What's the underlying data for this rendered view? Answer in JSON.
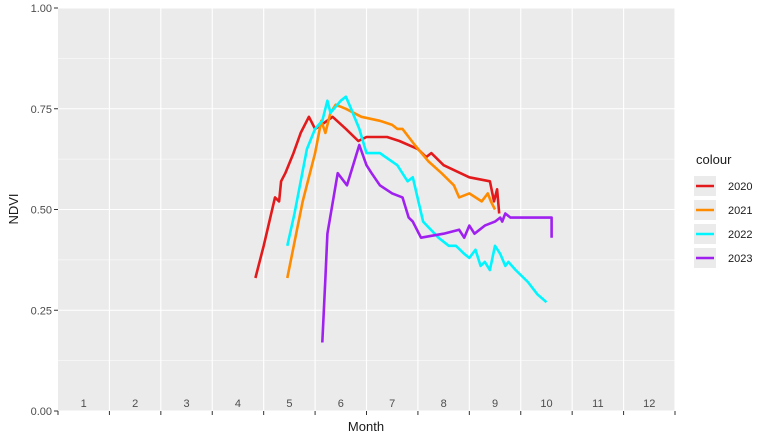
{
  "chart_data": {
    "type": "line",
    "xlabel": "Month",
    "ylabel": "NDVI",
    "xlim": [
      0.5,
      12.5
    ],
    "ylim": [
      0,
      1
    ],
    "x_ticks": [
      "1",
      "2",
      "3",
      "4",
      "5",
      "6",
      "7",
      "8",
      "9",
      "10",
      "11",
      "12"
    ],
    "y_ticks": [
      "0.00",
      "0.25",
      "0.50",
      "0.75",
      "1.00"
    ],
    "grid": true,
    "legend_title": "colour",
    "legend_position": "right",
    "background": "#ebebeb",
    "series": [
      {
        "name": "2020",
        "color": "#e31a1c",
        "points": [
          [
            4.34,
            0.33
          ],
          [
            4.5,
            0.41
          ],
          [
            4.72,
            0.53
          ],
          [
            4.8,
            0.52
          ],
          [
            4.84,
            0.57
          ],
          [
            4.92,
            0.59
          ],
          [
            5.08,
            0.64
          ],
          [
            5.22,
            0.69
          ],
          [
            5.38,
            0.73
          ],
          [
            5.5,
            0.7
          ],
          [
            5.62,
            0.71
          ],
          [
            5.84,
            0.73
          ],
          [
            6.1,
            0.7
          ],
          [
            6.34,
            0.67
          ],
          [
            6.5,
            0.68
          ],
          [
            6.9,
            0.68
          ],
          [
            7.14,
            0.67
          ],
          [
            7.5,
            0.65
          ],
          [
            7.66,
            0.63
          ],
          [
            7.76,
            0.64
          ],
          [
            8.0,
            0.61
          ],
          [
            8.5,
            0.58
          ],
          [
            8.9,
            0.57
          ],
          [
            8.98,
            0.52
          ],
          [
            9.04,
            0.55
          ],
          [
            9.08,
            0.49
          ]
        ]
      },
      {
        "name": "2021",
        "color": "#ff8c00",
        "points": [
          [
            4.96,
            0.33
          ],
          [
            5.26,
            0.52
          ],
          [
            5.5,
            0.64
          ],
          [
            5.62,
            0.72
          ],
          [
            5.7,
            0.69
          ],
          [
            5.8,
            0.74
          ],
          [
            5.9,
            0.76
          ],
          [
            6.1,
            0.75
          ],
          [
            6.4,
            0.73
          ],
          [
            6.76,
            0.72
          ],
          [
            7.0,
            0.71
          ],
          [
            7.1,
            0.7
          ],
          [
            7.2,
            0.7
          ],
          [
            7.44,
            0.66
          ],
          [
            7.7,
            0.62
          ],
          [
            7.96,
            0.59
          ],
          [
            8.2,
            0.56
          ],
          [
            8.3,
            0.53
          ],
          [
            8.5,
            0.54
          ],
          [
            8.74,
            0.52
          ],
          [
            8.86,
            0.54
          ],
          [
            8.92,
            0.52
          ],
          [
            9.0,
            0.5
          ]
        ]
      },
      {
        "name": "2022",
        "color": "#00f5ff",
        "points": [
          [
            4.96,
            0.41
          ],
          [
            5.1,
            0.49
          ],
          [
            5.34,
            0.65
          ],
          [
            5.5,
            0.7
          ],
          [
            5.64,
            0.72
          ],
          [
            5.74,
            0.77
          ],
          [
            5.8,
            0.74
          ],
          [
            6.0,
            0.77
          ],
          [
            6.1,
            0.78
          ],
          [
            6.2,
            0.75
          ],
          [
            6.36,
            0.7
          ],
          [
            6.5,
            0.64
          ],
          [
            6.76,
            0.64
          ],
          [
            7.1,
            0.61
          ],
          [
            7.3,
            0.57
          ],
          [
            7.4,
            0.58
          ],
          [
            7.6,
            0.47
          ],
          [
            7.9,
            0.43
          ],
          [
            8.1,
            0.41
          ],
          [
            8.24,
            0.41
          ],
          [
            8.4,
            0.39
          ],
          [
            8.5,
            0.38
          ],
          [
            8.62,
            0.4
          ],
          [
            8.72,
            0.36
          ],
          [
            8.8,
            0.37
          ],
          [
            8.9,
            0.35
          ],
          [
            9.0,
            0.41
          ],
          [
            9.1,
            0.39
          ],
          [
            9.2,
            0.36
          ],
          [
            9.26,
            0.37
          ],
          [
            9.4,
            0.35
          ],
          [
            9.64,
            0.32
          ],
          [
            9.82,
            0.29
          ],
          [
            10.0,
            0.27
          ]
        ]
      },
      {
        "name": "2023",
        "color": "#a020f0",
        "points": [
          [
            5.64,
            0.17
          ],
          [
            5.7,
            0.33
          ],
          [
            5.74,
            0.44
          ],
          [
            5.94,
            0.59
          ],
          [
            6.12,
            0.56
          ],
          [
            6.36,
            0.66
          ],
          [
            6.5,
            0.61
          ],
          [
            6.6,
            0.59
          ],
          [
            6.76,
            0.56
          ],
          [
            7.0,
            0.54
          ],
          [
            7.2,
            0.53
          ],
          [
            7.32,
            0.48
          ],
          [
            7.4,
            0.47
          ],
          [
            7.56,
            0.43
          ],
          [
            8.0,
            0.44
          ],
          [
            8.3,
            0.45
          ],
          [
            8.4,
            0.43
          ],
          [
            8.5,
            0.46
          ],
          [
            8.6,
            0.44
          ],
          [
            8.8,
            0.46
          ],
          [
            9.0,
            0.47
          ],
          [
            9.1,
            0.48
          ],
          [
            9.14,
            0.47
          ],
          [
            9.2,
            0.49
          ],
          [
            9.3,
            0.48
          ],
          [
            9.5,
            0.48
          ],
          [
            9.9,
            0.48
          ],
          [
            10.1,
            0.48
          ],
          [
            10.1,
            0.43
          ]
        ]
      }
    ]
  }
}
